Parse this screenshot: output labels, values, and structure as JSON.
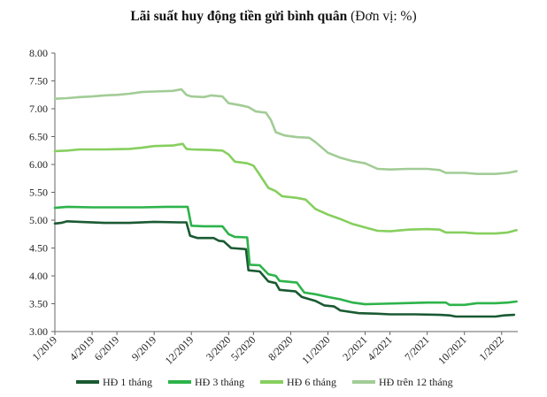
{
  "chart_data": {
    "type": "line",
    "title": "Lãi suất huy động tiền gửi bình quân",
    "title_unit": "(Đơn vị: %)",
    "xlabel": "",
    "ylabel": "",
    "ylim": [
      3.0,
      8.0
    ],
    "yticks": [
      "3.00",
      "3.50",
      "4.00",
      "4.50",
      "5.00",
      "5.50",
      "6.00",
      "6.50",
      "7.00",
      "7.50",
      "8.00"
    ],
    "x_tick_labels": [
      "1/2019",
      "4/2019",
      "6/2019",
      "9/2019",
      "12/2019",
      "3/2020",
      "5/2020",
      "8/2020",
      "11/2020",
      "2/2021",
      "4/2021",
      "7/2021",
      "10/2021",
      "1/2022"
    ],
    "x_tick_months": [
      0,
      3,
      5,
      8,
      11,
      14,
      16,
      19,
      22,
      25,
      27,
      30,
      33,
      36
    ],
    "x_range_months": [
      0,
      37.3
    ],
    "grid": false,
    "legend_position": "bottom",
    "series": [
      {
        "name": "HĐ 1 tháng",
        "color": "#1a5a32",
        "points": [
          [
            0,
            4.94
          ],
          [
            0.5,
            4.95
          ],
          [
            1,
            4.98
          ],
          [
            2,
            4.97
          ],
          [
            4,
            4.95
          ],
          [
            6,
            4.95
          ],
          [
            8,
            4.97
          ],
          [
            10,
            4.96
          ],
          [
            10.6,
            4.96
          ],
          [
            10.9,
            4.72
          ],
          [
            11.5,
            4.68
          ],
          [
            12.8,
            4.68
          ],
          [
            13.2,
            4.63
          ],
          [
            13.6,
            4.62
          ],
          [
            14.2,
            4.5
          ],
          [
            15.4,
            4.48
          ],
          [
            15.6,
            4.1
          ],
          [
            16.5,
            4.08
          ],
          [
            17.2,
            3.9
          ],
          [
            17.8,
            3.87
          ],
          [
            18.1,
            3.75
          ],
          [
            19.4,
            3.72
          ],
          [
            19.9,
            3.62
          ],
          [
            21,
            3.55
          ],
          [
            21.7,
            3.47
          ],
          [
            22.5,
            3.45
          ],
          [
            23,
            3.38
          ],
          [
            24.5,
            3.33
          ],
          [
            26,
            3.32
          ],
          [
            27,
            3.31
          ],
          [
            29,
            3.31
          ],
          [
            31,
            3.3
          ],
          [
            31.8,
            3.29
          ],
          [
            32.3,
            3.27
          ],
          [
            34,
            3.27
          ],
          [
            35.5,
            3.27
          ],
          [
            36.2,
            3.29
          ],
          [
            37,
            3.3
          ]
        ]
      },
      {
        "name": "HĐ 3 tháng",
        "color": "#2db34a",
        "points": [
          [
            0,
            5.22
          ],
          [
            1,
            5.24
          ],
          [
            3,
            5.23
          ],
          [
            5,
            5.23
          ],
          [
            7,
            5.23
          ],
          [
            9,
            5.24
          ],
          [
            10.7,
            5.24
          ],
          [
            11.0,
            4.9
          ],
          [
            12,
            4.89
          ],
          [
            13.5,
            4.89
          ],
          [
            14,
            4.75
          ],
          [
            14.5,
            4.7
          ],
          [
            15.5,
            4.69
          ],
          [
            15.7,
            4.2
          ],
          [
            16.5,
            4.19
          ],
          [
            17.2,
            4.03
          ],
          [
            17.8,
            4.0
          ],
          [
            18.1,
            3.91
          ],
          [
            19.5,
            3.88
          ],
          [
            20.1,
            3.7
          ],
          [
            21,
            3.67
          ],
          [
            22,
            3.62
          ],
          [
            23,
            3.58
          ],
          [
            24,
            3.52
          ],
          [
            25,
            3.49
          ],
          [
            26.5,
            3.5
          ],
          [
            28,
            3.51
          ],
          [
            30,
            3.52
          ],
          [
            31.5,
            3.52
          ],
          [
            31.8,
            3.48
          ],
          [
            33,
            3.48
          ],
          [
            34,
            3.51
          ],
          [
            35.5,
            3.51
          ],
          [
            36.5,
            3.52
          ],
          [
            37.2,
            3.54
          ]
        ]
      },
      {
        "name": "HĐ 6 tháng",
        "color": "#86cf5e",
        "points": [
          [
            0,
            6.24
          ],
          [
            1,
            6.25
          ],
          [
            2,
            6.27
          ],
          [
            4,
            6.27
          ],
          [
            6,
            6.28
          ],
          [
            7,
            6.3
          ],
          [
            8,
            6.33
          ],
          [
            9.5,
            6.34
          ],
          [
            10.3,
            6.37
          ],
          [
            10.6,
            6.28
          ],
          [
            11,
            6.27
          ],
          [
            12.5,
            6.26
          ],
          [
            13.5,
            6.25
          ],
          [
            14,
            6.18
          ],
          [
            14.5,
            6.05
          ],
          [
            15.5,
            6.02
          ],
          [
            16,
            5.98
          ],
          [
            16.4,
            5.85
          ],
          [
            17.2,
            5.58
          ],
          [
            17.8,
            5.52
          ],
          [
            18.3,
            5.43
          ],
          [
            19.5,
            5.4
          ],
          [
            20.2,
            5.37
          ],
          [
            21,
            5.2
          ],
          [
            22,
            5.1
          ],
          [
            23,
            5.02
          ],
          [
            24,
            4.93
          ],
          [
            25,
            4.87
          ],
          [
            26,
            4.81
          ],
          [
            27,
            4.8
          ],
          [
            28.5,
            4.83
          ],
          [
            30,
            4.84
          ],
          [
            31,
            4.83
          ],
          [
            31.5,
            4.78
          ],
          [
            33,
            4.78
          ],
          [
            34,
            4.76
          ],
          [
            35.5,
            4.76
          ],
          [
            36.5,
            4.78
          ],
          [
            37.2,
            4.82
          ]
        ]
      },
      {
        "name": "HĐ trên 12 tháng",
        "color": "#a2cc96",
        "points": [
          [
            0,
            7.18
          ],
          [
            1,
            7.19
          ],
          [
            2,
            7.21
          ],
          [
            3,
            7.22
          ],
          [
            4,
            7.24
          ],
          [
            5,
            7.25
          ],
          [
            6,
            7.27
          ],
          [
            7,
            7.3
          ],
          [
            8,
            7.31
          ],
          [
            9.5,
            7.32
          ],
          [
            10.2,
            7.35
          ],
          [
            10.6,
            7.25
          ],
          [
            11,
            7.22
          ],
          [
            12,
            7.21
          ],
          [
            12.6,
            7.24
          ],
          [
            13.5,
            7.22
          ],
          [
            14,
            7.1
          ],
          [
            15,
            7.06
          ],
          [
            15.6,
            7.03
          ],
          [
            16.2,
            6.95
          ],
          [
            17,
            6.93
          ],
          [
            17.4,
            6.8
          ],
          [
            17.8,
            6.58
          ],
          [
            18.5,
            6.52
          ],
          [
            19.5,
            6.49
          ],
          [
            20.5,
            6.48
          ],
          [
            21,
            6.4
          ],
          [
            22,
            6.21
          ],
          [
            23,
            6.12
          ],
          [
            24,
            6.06
          ],
          [
            25,
            6.02
          ],
          [
            26,
            5.92
          ],
          [
            27,
            5.91
          ],
          [
            28.5,
            5.92
          ],
          [
            30,
            5.92
          ],
          [
            31,
            5.9
          ],
          [
            31.5,
            5.85
          ],
          [
            33,
            5.85
          ],
          [
            34,
            5.83
          ],
          [
            35.5,
            5.83
          ],
          [
            36.5,
            5.85
          ],
          [
            37.2,
            5.88
          ]
        ]
      }
    ]
  }
}
